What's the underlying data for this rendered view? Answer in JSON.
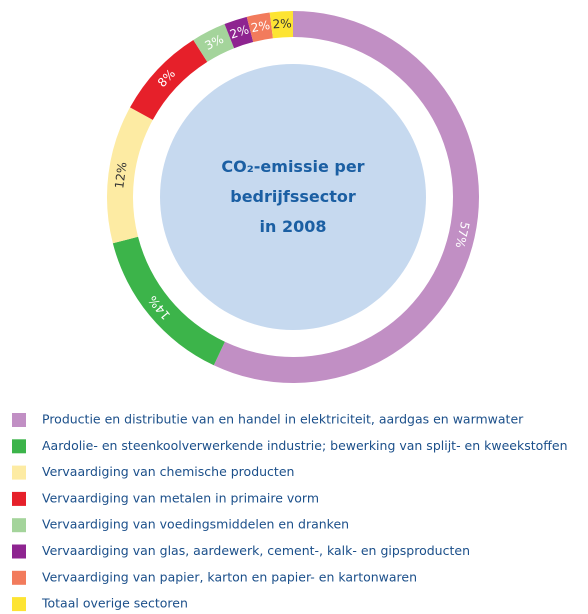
{
  "chart_data": {
    "type": "donut",
    "title": [
      "CO₂-emissie per",
      "bedrijfssector",
      "in 2008"
    ],
    "categories": [
      "Productie en distributie van en handel in elektriciteit, aardgas en warmwater",
      "Aardolie- en steenkoolverwerkende industrie; bewerking van splijt- en kweekstoffen",
      "Vervaardiging van chemische producten",
      "Vervaardiging van metalen in primaire vorm",
      "Vervaardiging van voedingsmiddelen en dranken",
      "Vervaardiging van glas, aardewerk, cement-, kalk- en gipsproducten",
      "Vervaardiging van papier, karton en papier- en kartonwaren",
      "Totaal overige sectoren"
    ],
    "values": [
      57,
      14,
      12,
      8,
      3,
      2,
      2,
      2
    ],
    "value_labels": [
      "57%",
      "14%",
      "12%",
      "8%",
      "3%",
      "2%",
      "2%",
      "2%"
    ],
    "colors": [
      "#c18fc4",
      "#3cb44a",
      "#fdeba3",
      "#e6202a",
      "#a4d49b",
      "#8e2490",
      "#f27b5c",
      "#fde433"
    ],
    "legend": "bottom"
  }
}
